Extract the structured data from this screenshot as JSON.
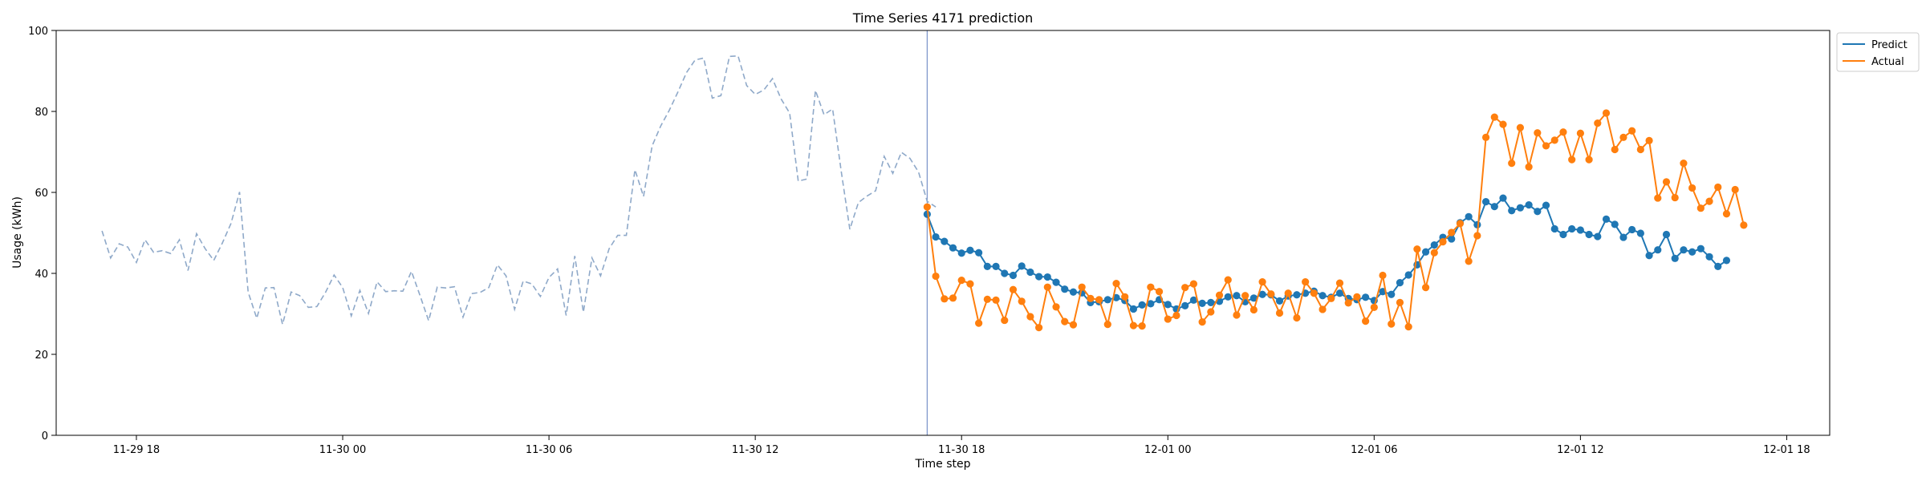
{
  "chart_data": {
    "type": "line",
    "title": "Time Series 4171 prediction",
    "xlabel": "Time step",
    "ylabel": "Usage (kWh)",
    "ylim": [
      0,
      100
    ],
    "yticks": [
      0,
      20,
      40,
      60,
      80,
      100
    ],
    "xlim": [
      "2023-11-29 15:40",
      "2023-12-01 19:15"
    ],
    "xticks": [
      {
        "t": "2023-11-29 18:00",
        "label": "11-29 18"
      },
      {
        "t": "2023-11-30 00:00",
        "label": "11-30 00"
      },
      {
        "t": "2023-11-30 06:00",
        "label": "11-30 06"
      },
      {
        "t": "2023-11-30 12:00",
        "label": "11-30 12"
      },
      {
        "t": "2023-11-30 18:00",
        "label": "11-30 18"
      },
      {
        "t": "2023-12-01 00:00",
        "label": "12-01 00"
      },
      {
        "t": "2023-12-01 06:00",
        "label": "12-01 06"
      },
      {
        "t": "2023-12-01 12:00",
        "label": "12-01 12"
      },
      {
        "t": "2023-12-01 18:00",
        "label": "12-01 18"
      }
    ],
    "grid": false,
    "legend_position": "top-right, outside plot",
    "forecast_start": "2023-11-30 17:00",
    "interval_minutes": 15,
    "series": [
      {
        "name": "",
        "style": "dashed",
        "color": "#8fa9c9",
        "start": "2023-11-29 17:00",
        "values": [
          50.5,
          43.8,
          47.3,
          46.5,
          42.7,
          48.3,
          45.2,
          45.6,
          44.9,
          48.3,
          40.7,
          49.8,
          46.1,
          43.2,
          47.5,
          52.3,
          60.1,
          35.4,
          28.9,
          36.4,
          36.5,
          27.4,
          35.4,
          34.5,
          31.6,
          31.8,
          35.3,
          39.6,
          36.5,
          29.5,
          35.8,
          30.1,
          37.9,
          35.5,
          35.7,
          35.6,
          40.5,
          34.5,
          28.3,
          36.6,
          36.4,
          36.7,
          29.2,
          35.0,
          35.3,
          36.5,
          42.1,
          39.4,
          31.1,
          38.1,
          37.4,
          34.3,
          39.0,
          41.1,
          29.6,
          44.3,
          30.4,
          43.8,
          39.4,
          46.1,
          49.4,
          49.4,
          65.6,
          59.0,
          71.5,
          76.4,
          80.3,
          84.8,
          89.6,
          92.7,
          93.2,
          83.3,
          83.9,
          93.6,
          93.7,
          86.4,
          84.2,
          85.3,
          88.1,
          83.1,
          79.6,
          62.8,
          63.3,
          85.2,
          79.2,
          80.6,
          65.2,
          50.9,
          57.5,
          59.1,
          60.4,
          68.9,
          64.7,
          69.9,
          68.4,
          65.0,
          57.8,
          56.4
        ]
      },
      {
        "name": "Predict",
        "style": "solid-markers",
        "color": "#1f77b4",
        "start": "2023-11-30 17:00",
        "values": [
          54.6,
          49.0,
          47.9,
          46.3,
          45.0,
          45.7,
          45.1,
          41.7,
          41.7,
          40.0,
          39.5,
          41.8,
          40.3,
          39.2,
          39.1,
          37.8,
          36.1,
          35.4,
          35.2,
          32.8,
          33.0,
          33.5,
          34.0,
          33.3,
          31.2,
          32.2,
          32.5,
          33.5,
          32.3,
          31.2,
          32.0,
          33.4,
          32.6,
          32.8,
          33.1,
          34.2,
          34.5,
          33.0,
          33.9,
          34.8,
          34.7,
          33.2,
          34.4,
          34.7,
          35.1,
          35.6,
          34.5,
          34.1,
          35.1,
          33.8,
          33.5,
          34.1,
          33.3,
          35.5,
          34.8,
          37.7,
          39.6,
          42.1,
          45.3,
          47.0,
          48.9,
          48.5,
          52.5,
          54.0,
          52.0,
          57.7,
          56.5,
          58.6,
          55.5,
          56.2,
          56.9,
          55.3,
          56.8,
          51.0,
          49.6,
          51.0,
          50.7,
          49.6,
          49.1,
          53.4,
          52.1,
          48.9,
          50.8,
          49.9,
          44.4,
          45.8,
          49.6,
          43.7,
          45.8,
          45.3,
          46.1,
          44.1,
          41.7,
          43.2
        ]
      },
      {
        "name": "Actual",
        "style": "solid-markers",
        "color": "#ff7f0e",
        "start": "2023-11-30 17:00",
        "values": [
          56.4,
          39.3,
          33.7,
          33.9,
          38.3,
          37.4,
          27.7,
          33.6,
          33.4,
          28.4,
          36.0,
          33.1,
          29.3,
          26.6,
          36.6,
          31.7,
          28.1,
          27.3,
          36.6,
          33.8,
          33.5,
          27.4,
          37.5,
          34.2,
          27.1,
          27.0,
          36.6,
          35.5,
          28.7,
          29.6,
          36.5,
          37.4,
          28.0,
          30.5,
          34.6,
          38.4,
          29.7,
          34.5,
          31.0,
          37.9,
          34.9,
          30.2,
          35.1,
          29.0,
          37.9,
          35.1,
          31.1,
          33.8,
          37.6,
          32.7,
          34.2,
          28.2,
          31.6,
          39.5,
          27.5,
          32.8,
          26.8,
          46.0,
          36.5,
          45.1,
          47.8,
          50.1,
          52.3,
          43.0,
          49.3,
          73.6,
          78.6,
          76.8,
          67.2,
          76.0,
          66.3,
          74.7,
          71.5,
          72.9,
          74.9,
          68.1,
          74.6,
          68.1,
          77.1,
          79.6,
          70.6,
          73.6,
          75.2,
          70.6,
          72.8,
          58.6,
          62.6,
          58.7,
          67.2,
          61.1,
          56.1,
          57.8,
          61.3,
          54.7,
          60.7,
          51.9
        ]
      }
    ]
  }
}
